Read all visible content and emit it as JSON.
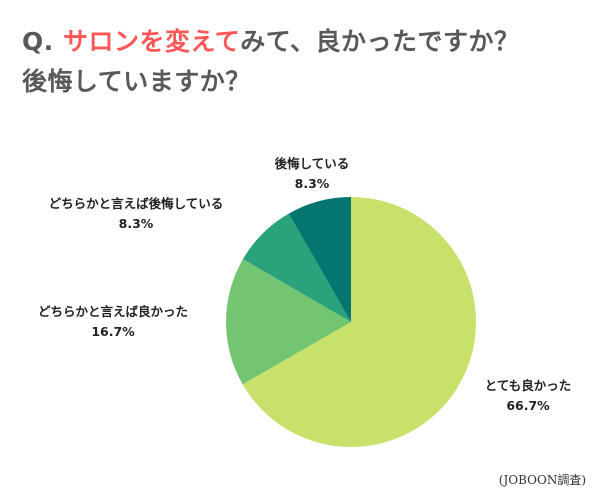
{
  "title": {
    "prefix": "Q.",
    "highlight": "サロンを変えて",
    "rest_line1": "みて、良かったですか？",
    "line2": "後悔していますか？"
  },
  "colors": {
    "accent": "#ff5757",
    "title": "#595959",
    "slices": [
      "#c7e16b",
      "#73c571",
      "#2aa27b",
      "#05766f"
    ]
  },
  "chart_data": {
    "type": "pie",
    "start": "12 o'clock, clockwise",
    "categories": [
      "とても良かった",
      "どちらかと言えば良かった",
      "どちらかと言えば後悔している",
      "後悔している"
    ],
    "values": [
      66.7,
      16.7,
      8.3,
      8.3
    ],
    "value_labels": [
      "66.7%",
      "16.7%",
      "8.3%",
      "8.3%"
    ]
  },
  "source": "(JOBOON調査)"
}
